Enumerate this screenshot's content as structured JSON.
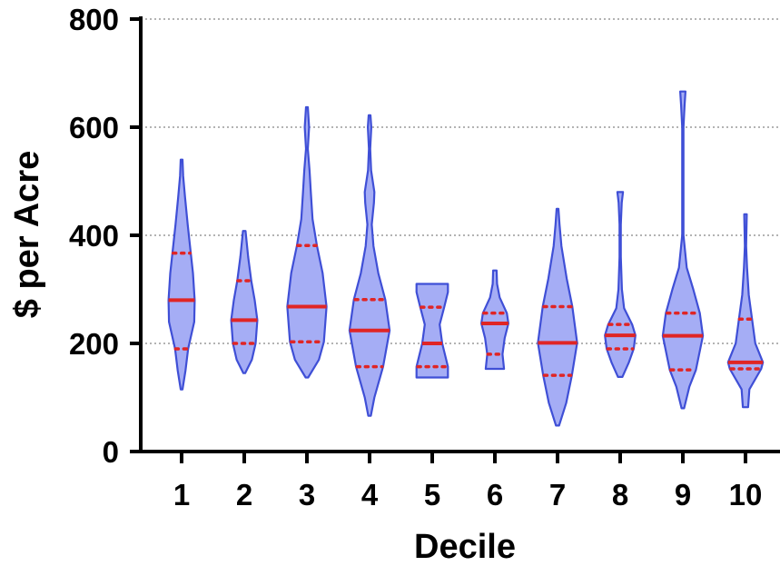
{
  "chart_data": {
    "type": "violin",
    "xlabel": "Decile",
    "ylabel": "$ per Acre",
    "ylim": [
      0,
      800
    ],
    "yticks": [
      "0",
      "200",
      "400",
      "600",
      "800"
    ],
    "categories": [
      "1",
      "2",
      "3",
      "4",
      "5",
      "6",
      "7",
      "8",
      "9",
      "10"
    ],
    "grid": true,
    "colors": {
      "fill": "#a5adf5",
      "outline": "#3f4fd6",
      "median": "#e02525",
      "quartile": "#e02525"
    },
    "violins": [
      {
        "category": "1",
        "min": 115,
        "max": 540,
        "median": 280,
        "q1": 190,
        "q3": 367,
        "profile": [
          [
            115,
            0.04
          ],
          [
            150,
            0.18
          ],
          [
            190,
            0.3
          ],
          [
            240,
            0.58
          ],
          [
            280,
            0.6
          ],
          [
            330,
            0.52
          ],
          [
            367,
            0.42
          ],
          [
            420,
            0.28
          ],
          [
            470,
            0.16
          ],
          [
            510,
            0.07
          ],
          [
            540,
            0.04
          ]
        ]
      },
      {
        "category": "2",
        "min": 145,
        "max": 408,
        "median": 243,
        "q1": 200,
        "q3": 316,
        "profile": [
          [
            145,
            0.04
          ],
          [
            170,
            0.35
          ],
          [
            200,
            0.52
          ],
          [
            243,
            0.6
          ],
          [
            280,
            0.48
          ],
          [
            316,
            0.32
          ],
          [
            360,
            0.18
          ],
          [
            408,
            0.06
          ]
        ]
      },
      {
        "category": "3",
        "min": 137,
        "max": 637,
        "median": 268,
        "q1": 203,
        "q3": 381,
        "profile": [
          [
            137,
            0.06
          ],
          [
            170,
            0.55
          ],
          [
            203,
            0.78
          ],
          [
            268,
            0.9
          ],
          [
            330,
            0.72
          ],
          [
            381,
            0.46
          ],
          [
            430,
            0.26
          ],
          [
            480,
            0.18
          ],
          [
            520,
            0.12
          ],
          [
            560,
            0.04
          ],
          [
            600,
            0.1
          ],
          [
            637,
            0.04
          ]
        ]
      },
      {
        "category": "4",
        "min": 66,
        "max": 622,
        "median": 224,
        "q1": 157,
        "q3": 281,
        "profile": [
          [
            66,
            0.06
          ],
          [
            100,
            0.22
          ],
          [
            157,
            0.62
          ],
          [
            224,
            0.92
          ],
          [
            281,
            0.72
          ],
          [
            330,
            0.4
          ],
          [
            380,
            0.18
          ],
          [
            420,
            0.1
          ],
          [
            460,
            0.2
          ],
          [
            480,
            0.22
          ],
          [
            520,
            0.07
          ],
          [
            560,
            0.03
          ],
          [
            600,
            0.08
          ],
          [
            622,
            0.04
          ]
        ]
      },
      {
        "category": "5",
        "min": 137,
        "max": 310,
        "median": 200,
        "q1": 157,
        "q3": 267,
        "profile": [
          [
            137,
            0.72
          ],
          [
            157,
            0.72
          ],
          [
            200,
            0.46
          ],
          [
            235,
            0.34
          ],
          [
            267,
            0.55
          ],
          [
            295,
            0.72
          ],
          [
            310,
            0.72
          ]
        ]
      },
      {
        "category": "6",
        "min": 153,
        "max": 335,
        "median": 237,
        "q1": 180,
        "q3": 256,
        "profile": [
          [
            153,
            0.42
          ],
          [
            180,
            0.35
          ],
          [
            210,
            0.45
          ],
          [
            237,
            0.62
          ],
          [
            256,
            0.55
          ],
          [
            285,
            0.22
          ],
          [
            310,
            0.1
          ],
          [
            335,
            0.08
          ]
        ]
      },
      {
        "category": "7",
        "min": 48,
        "max": 449,
        "median": 201,
        "q1": 141,
        "q3": 268,
        "profile": [
          [
            48,
            0.07
          ],
          [
            90,
            0.4
          ],
          [
            141,
            0.66
          ],
          [
            201,
            0.9
          ],
          [
            268,
            0.68
          ],
          [
            320,
            0.42
          ],
          [
            380,
            0.18
          ],
          [
            420,
            0.09
          ],
          [
            449,
            0.04
          ]
        ]
      },
      {
        "category": "8",
        "min": 138,
        "max": 480,
        "median": 215,
        "q1": 190,
        "q3": 235,
        "profile": [
          [
            138,
            0.1
          ],
          [
            165,
            0.4
          ],
          [
            190,
            0.62
          ],
          [
            215,
            0.7
          ],
          [
            235,
            0.55
          ],
          [
            265,
            0.18
          ],
          [
            300,
            0.08
          ],
          [
            360,
            0.03
          ],
          [
            420,
            0.03
          ],
          [
            460,
            0.07
          ],
          [
            480,
            0.13
          ]
        ]
      },
      {
        "category": "9",
        "min": 80,
        "max": 666,
        "median": 214,
        "q1": 151,
        "q3": 256,
        "profile": [
          [
            80,
            0.06
          ],
          [
            120,
            0.3
          ],
          [
            151,
            0.6
          ],
          [
            214,
            0.92
          ],
          [
            256,
            0.78
          ],
          [
            300,
            0.48
          ],
          [
            340,
            0.18
          ],
          [
            400,
            0.03
          ],
          [
            600,
            0.03
          ],
          [
            640,
            0.08
          ],
          [
            666,
            0.12
          ]
        ]
      },
      {
        "category": "10",
        "min": 82,
        "max": 439,
        "median": 165,
        "q1": 153,
        "q3": 245,
        "profile": [
          [
            82,
            0.12
          ],
          [
            115,
            0.18
          ],
          [
            153,
            0.72
          ],
          [
            165,
            0.8
          ],
          [
            200,
            0.45
          ],
          [
            245,
            0.3
          ],
          [
            290,
            0.15
          ],
          [
            340,
            0.07
          ],
          [
            380,
            0.03
          ],
          [
            439,
            0.06
          ]
        ]
      }
    ]
  }
}
